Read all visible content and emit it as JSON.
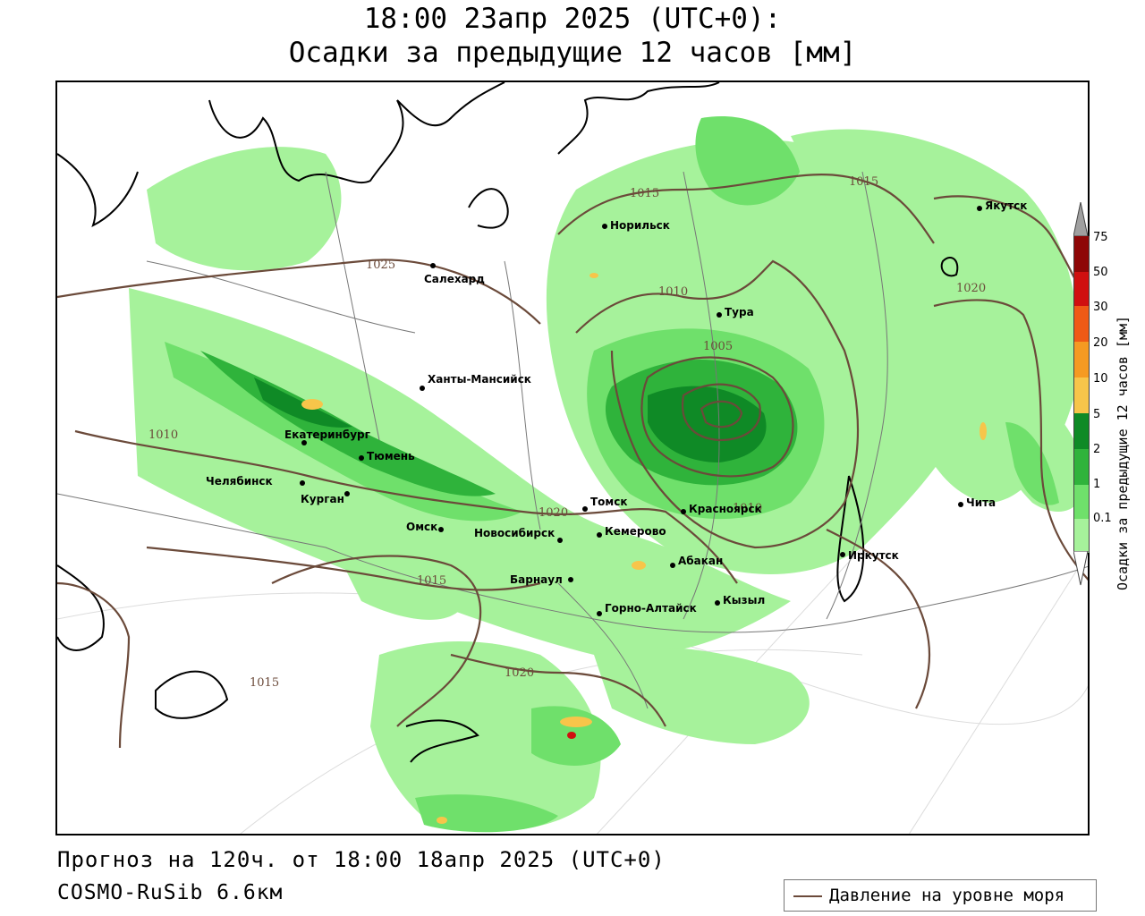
{
  "title": {
    "line1": "18:00 23апр 2025 (UTC+0):",
    "line2": "Осадки за предыдущие 12 часов [мм]"
  },
  "footer": {
    "forecast": "Прогноз на 120ч. от 18:00 18апр 2025 (UTC+0)",
    "model": "COSMO-RuSib 6.6км"
  },
  "legend": {
    "pressure_label": "Давление на уровне моря",
    "pressure_color": "#6b4a3a"
  },
  "colorbar": {
    "title": "Осадки за предыдущие 12 часов [мм]",
    "levels": [
      "0.1",
      "1",
      "2",
      "5",
      "10",
      "20",
      "30",
      "50",
      "75"
    ],
    "colors": [
      "#a6f29b",
      "#6fe06b",
      "#2fb33b",
      "#0f8a26",
      "#f7c54a",
      "#f59a22",
      "#ef5a16",
      "#d01010",
      "#8e0707",
      "#a0a0a0"
    ]
  },
  "cities": [
    {
      "name": "Салехард"
    },
    {
      "name": "Норильск"
    },
    {
      "name": "Якутск"
    },
    {
      "name": "Тура"
    },
    {
      "name": "Ханты-Мансийск"
    },
    {
      "name": "Екатеринбург"
    },
    {
      "name": "Тюмень"
    },
    {
      "name": "Челябинск"
    },
    {
      "name": "Курган"
    },
    {
      "name": "Омск"
    },
    {
      "name": "Томск"
    },
    {
      "name": "Новосибирск"
    },
    {
      "name": "Кемерово"
    },
    {
      "name": "Красноярск"
    },
    {
      "name": "Барнаул"
    },
    {
      "name": "Абакан"
    },
    {
      "name": "Горно-Алтайск"
    },
    {
      "name": "Кызыл"
    },
    {
      "name": "Иркутск"
    },
    {
      "name": "Чита"
    }
  ],
  "isobar_labels": [
    {
      "value": "1015"
    },
    {
      "value": "1015"
    },
    {
      "value": "1025"
    },
    {
      "value": "1010"
    },
    {
      "value": "1020"
    },
    {
      "value": "1005"
    },
    {
      "value": "1010"
    },
    {
      "value": "1020"
    },
    {
      "value": "1010"
    },
    {
      "value": "1015"
    },
    {
      "value": "1020"
    },
    {
      "value": "1015"
    }
  ]
}
